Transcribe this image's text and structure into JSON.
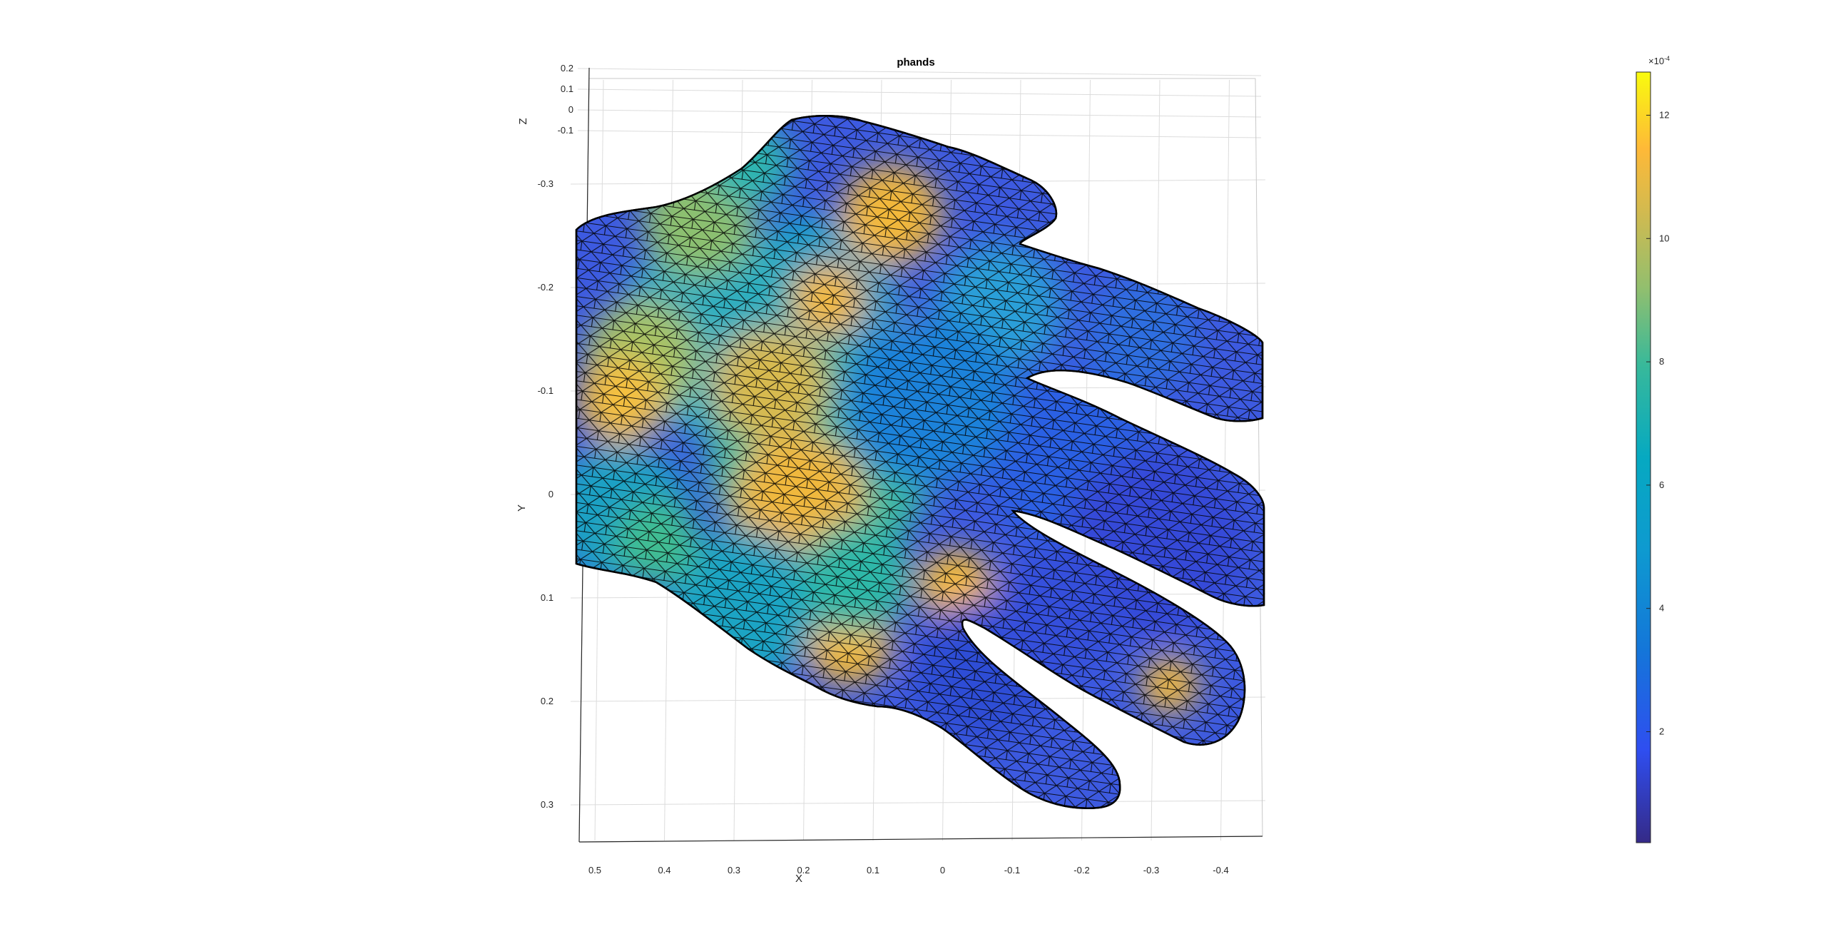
{
  "chart_data": {
    "type": "surface",
    "title": "phands",
    "xlabel": "X",
    "ylabel": "Y",
    "zlabel": "Z",
    "x_ticks": [
      "0.5",
      "0.4",
      "0.3",
      "0.2",
      "0.1",
      "0",
      "-0.1",
      "-0.2",
      "-0.3",
      "-0.4"
    ],
    "y_ticks": [
      "-0.3",
      "-0.2",
      "-0.1",
      "0",
      "0.1",
      "0.2",
      "0.3"
    ],
    "z_ticks": [
      "0.2",
      "0.1",
      "0",
      "-0.1"
    ],
    "colorbar": {
      "colormap": "parula",
      "range": [
        0.2,
        12.7
      ],
      "ticks": [
        "2",
        "4",
        "6",
        "8",
        "10",
        "12"
      ],
      "exponent_base": "×10",
      "exponent_power": "-4"
    },
    "grid": true,
    "mesh_edges": true
  }
}
